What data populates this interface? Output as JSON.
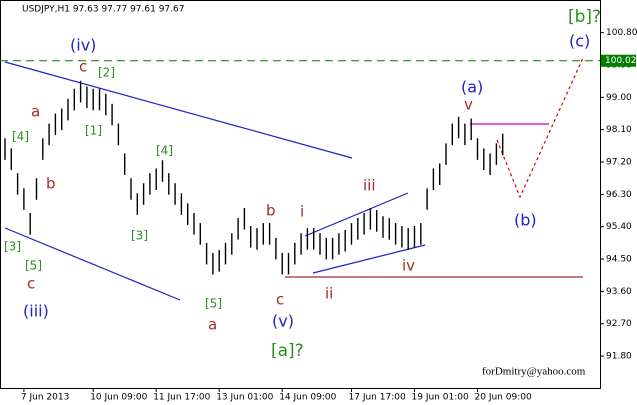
{
  "chart_data": {
    "type": "ohlc",
    "title": "USDJPY,H1  97.63 97.77 97.61 97.67",
    "color": "#000000",
    "ylim": [
      90.91,
      101.71
    ],
    "yticks": [
      {
        "value": 91.8,
        "label": "91.80"
      },
      {
        "value": 92.7,
        "label": "92.70"
      },
      {
        "value": 93.6,
        "label": "93.60"
      },
      {
        "value": 94.5,
        "label": "94.50"
      },
      {
        "value": 95.4,
        "label": "95.40"
      },
      {
        "value": 96.3,
        "label": "96.30"
      },
      {
        "value": 97.2,
        "label": "97.20"
      },
      {
        "value": 98.1,
        "label": "98.10"
      },
      {
        "value": 99,
        "label": "99.00"
      },
      {
        "value": 99.9,
        "label": "99.90"
      },
      {
        "value": 100.8,
        "label": "100.80"
      }
    ],
    "hline": 100.02,
    "hline_color": "#008000",
    "categories": [
      null,
      null,
      null,
      "7 Jun 2013",
      null,
      null,
      null,
      null,
      null,
      null,
      null,
      null,
      null,
      null,
      "10 Jun 09:00",
      null,
      null,
      null,
      null,
      null,
      null,
      null,
      null,
      null,
      "11 Jun 17:00",
      null,
      null,
      null,
      null,
      null,
      null,
      null,
      null,
      null,
      "13 Jun 01:00",
      null,
      null,
      null,
      null,
      null,
      null,
      null,
      null,
      null,
      "14 Jun 09:00",
      null,
      null,
      null,
      null,
      null,
      null,
      null,
      null,
      null,
      null,
      "17 Jun 17:00",
      null,
      null,
      null,
      null,
      null,
      null,
      null,
      null,
      null,
      "19 Jun 01:00",
      null,
      null,
      null,
      null,
      null,
      null,
      null,
      null,
      null,
      "20 Jun 09:00",
      null,
      null,
      null,
      null
    ],
    "high": [
      97.86,
      97.58,
      96.89,
      96.47,
      95.78,
      96.75,
      97.86,
      98.27,
      98.55,
      98.69,
      98.96,
      99.24,
      99.46,
      99.3,
      99.24,
      99.24,
      99.1,
      98.82,
      98.27,
      97.44,
      96.75,
      96.33,
      96.61,
      96.89,
      97.02,
      97.25,
      96.89,
      96.61,
      96.33,
      96.05,
      95.78,
      95.5,
      94.95,
      94.67,
      94.75,
      94.95,
      95.22,
      95.64,
      95.92,
      95.42,
      95.36,
      95.5,
      95.5,
      95.09,
      94.67,
      94.67,
      94.95,
      95.22,
      95.36,
      95.36,
      95.22,
      95.09,
      95.09,
      95.22,
      95.31,
      95.5,
      95.64,
      95.78,
      95.92,
      95.86,
      95.69,
      95.64,
      95.5,
      95.42,
      95.36,
      95.42,
      95.5,
      96.47,
      97.02,
      97.16,
      97.72,
      98.27,
      98.46,
      98.27,
      98.41,
      97.86,
      97.58,
      97.44,
      97.72,
      97.99
    ],
    "low": [
      97.26,
      96.98,
      96.29,
      95.87,
      95.18,
      96.15,
      97.26,
      97.67,
      97.95,
      98.09,
      98.36,
      98.64,
      98.86,
      98.7,
      98.64,
      98.64,
      98.5,
      98.22,
      97.67,
      96.84,
      96.15,
      95.73,
      96.01,
      96.29,
      96.42,
      96.65,
      96.29,
      96.01,
      95.73,
      95.45,
      95.18,
      94.9,
      94.35,
      94.07,
      94.15,
      94.35,
      94.62,
      95.04,
      95.32,
      94.82,
      94.76,
      94.9,
      94.9,
      94.49,
      94.07,
      94.07,
      94.35,
      94.62,
      94.76,
      94.76,
      94.62,
      94.49,
      94.49,
      94.62,
      94.71,
      94.9,
      95.04,
      95.18,
      95.32,
      95.26,
      95.09,
      95.04,
      94.9,
      94.82,
      94.76,
      94.82,
      94.9,
      95.87,
      96.42,
      96.56,
      97.12,
      97.67,
      97.86,
      97.67,
      97.81,
      97.26,
      96.98,
      96.84,
      97.12,
      97.39
    ],
    "annotations": [
      "[b]?",
      "(c)",
      "(iv)",
      "c",
      "[2]",
      "a",
      "[4]",
      "[1]",
      "b",
      "[4]",
      "[3]",
      "[3]",
      "[5]",
      "c",
      "(iii)",
      "[5]",
      "a",
      "b",
      "i",
      "c",
      "(v)",
      "[a]?",
      "ii",
      "iii",
      "iv",
      "(a)",
      "v",
      "(b)",
      "forDmitry@yahoo.com"
    ]
  }
}
